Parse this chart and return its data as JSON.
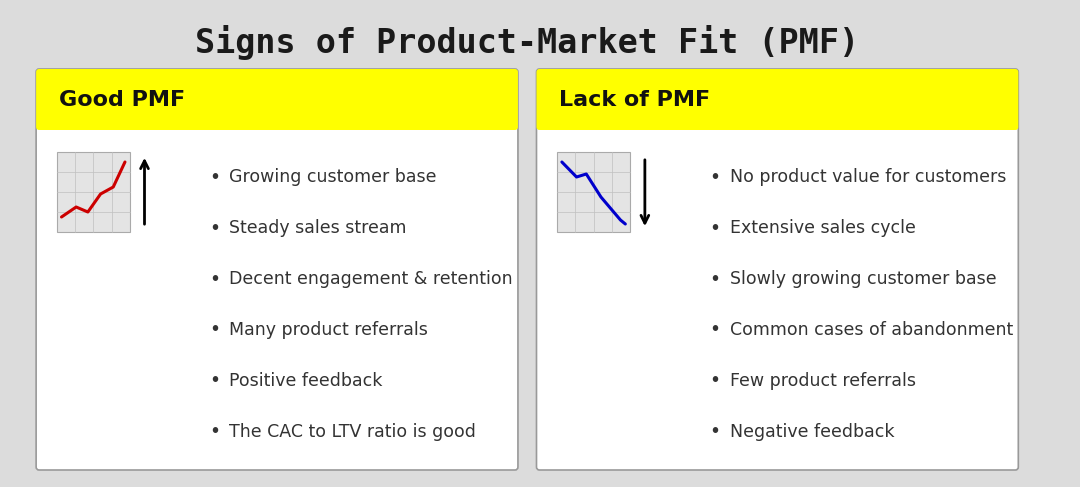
{
  "title": "Signs of Product-Market Fit (PMF)",
  "title_fontsize": 24,
  "title_font": "monospace",
  "background_color": "#dcdcdc",
  "card_bg": "#ffffff",
  "header_bg": "#ffff00",
  "border_color": "#999999",
  "left_header": "Good PMF",
  "right_header": "Lack of PMF",
  "header_fontsize": 16,
  "left_items": [
    "Growing customer base",
    "Steady sales stream",
    "Decent engagement & retention",
    "Many product referrals",
    "Positive feedback",
    "The CAC to LTV ratio is good"
  ],
  "right_items": [
    "No product value for customers",
    "Extensive sales cycle",
    "Slowly growing customer base",
    "Common cases of abandonment",
    "Few product referrals",
    "Negative feedback"
  ],
  "item_fontsize": 12.5,
  "bullet": "•"
}
